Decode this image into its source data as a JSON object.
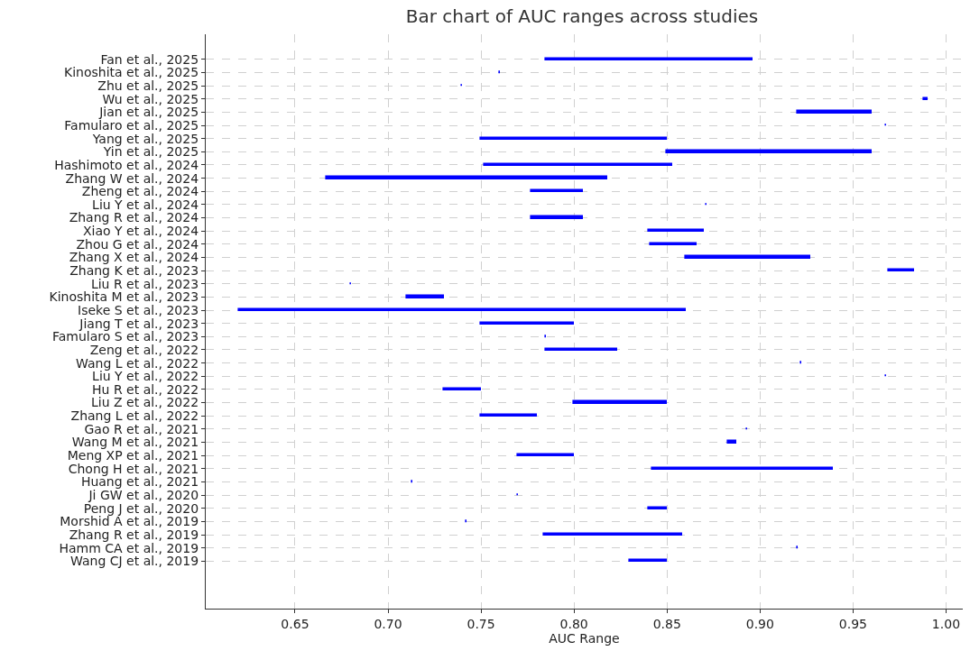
{
  "chart_data": {
    "type": "bar",
    "orientation": "horizontal",
    "title": "Bar chart of AUC ranges across studies",
    "xlabel": "AUC Range",
    "categories": [
      "Fan et al., 2025",
      "Kinoshita et al., 2025",
      "Zhu et al., 2025",
      "Wu et al., 2025",
      "Jian et al., 2025",
      "Famularo et al., 2025",
      "Yang et al., 2025",
      "Yin et al., 2025",
      "Hashimoto et al., 2024",
      "Zhang W et al., 2024",
      "Zheng et al., 2024",
      "Liu Y et al., 2024",
      "Zhang R et al., 2024",
      "Xiao Y et al., 2024",
      "Zhou G et al., 2024",
      "Zhang X et al., 2024",
      "Zhang K et al., 2023",
      "Liu R et al., 2023",
      "Kinoshita M et al., 2023",
      "Iseke S et al., 2023",
      "Jiang T et al., 2023",
      "Famularo S et al., 2023",
      "Zeng et al., 2022",
      "Wang L et al., 2022",
      "Liu Y et al., 2022",
      "Hu R et al., 2022",
      "Liu Z et al., 2022",
      "Zhang L et al., 2022",
      "Gao R et al., 2021",
      "Wang M et al., 2021",
      "Meng XP et al., 2021",
      "Chong H et al., 2021",
      "Huang et al., 2021",
      "Ji GW et al., 2020",
      "Peng J et al., 2020",
      "Morshid A et al., 2019",
      "Zhang R et al., 2019",
      "Hamm CA et al., 2019",
      "Wang CJ et al., 2019"
    ],
    "base": [
      0.785,
      0.76,
      0.74,
      0.988,
      0.92,
      0.968,
      0.75,
      0.85,
      0.752,
      0.667,
      0.777,
      0.871,
      0.777,
      0.84,
      0.841,
      0.86,
      0.969,
      0.68,
      0.71,
      0.62,
      0.75,
      0.785,
      0.785,
      0.922,
      0.968,
      0.73,
      0.8,
      0.75,
      0.893,
      0.883,
      0.77,
      0.842,
      0.713,
      0.77,
      0.84,
      0.742,
      0.784,
      0.92,
      0.83
    ],
    "values": [
      0.111,
      0,
      0,
      0.002,
      0.04,
      0,
      0.1,
      0.11,
      0.101,
      0.151,
      0.028,
      0,
      0.028,
      0.03,
      0.025,
      0.067,
      0.014,
      0,
      0.02,
      0.24,
      0.05,
      0,
      0.038,
      0,
      0,
      0.02,
      0.05,
      0.03,
      0,
      0.004,
      0.03,
      0.097,
      0,
      0,
      0.01,
      0,
      0.074,
      0,
      0.02
    ],
    "color": "#0000ff",
    "xlim": [
      0.602,
      1.009
    ],
    "xticks": [
      0.65,
      {
        "value": 0.7,
        "label": "0.70"
      },
      0.75,
      {
        "value": 0.8,
        "label": "0.80"
      },
      0.85,
      {
        "value": 0.9,
        "label": "0.90"
      },
      0.95,
      {
        "value": 1,
        "label": "1.00"
      }
    ],
    "grid": true,
    "legend": false
  }
}
